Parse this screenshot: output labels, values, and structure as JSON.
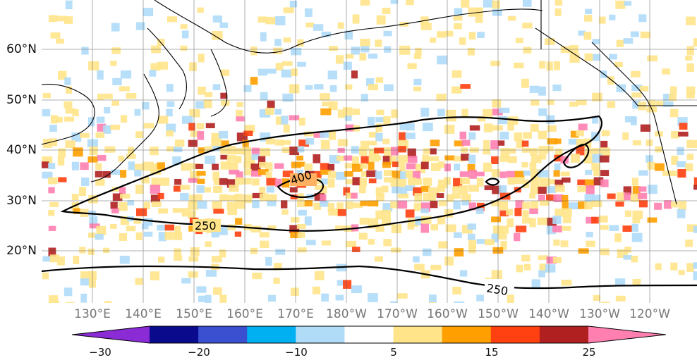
{
  "map": {
    "lat_labels": [
      "60°N",
      "50°N",
      "40°N",
      "30°N",
      "20°N"
    ],
    "lon_labels": [
      "130°E",
      "140°E",
      "150°E",
      "160°E",
      "170°E",
      "180°W",
      "170°W",
      "160°W",
      "150°W",
      "140°W",
      "130°W",
      "120°W"
    ],
    "contour_labels": [
      "400",
      "250",
      "250"
    ]
  },
  "colorbar": {
    "colors": [
      "#8a2bd6",
      "#0a0a8c",
      "#3a50d0",
      "#00b0f0",
      "#b0dcf8",
      "#ffffff",
      "#ffe48a",
      "#ffa000",
      "#ff4010",
      "#b02020",
      "#ff80b0"
    ],
    "tick_labels": [
      "−30",
      "−20",
      "−10",
      "5",
      "15",
      "25"
    ]
  }
}
